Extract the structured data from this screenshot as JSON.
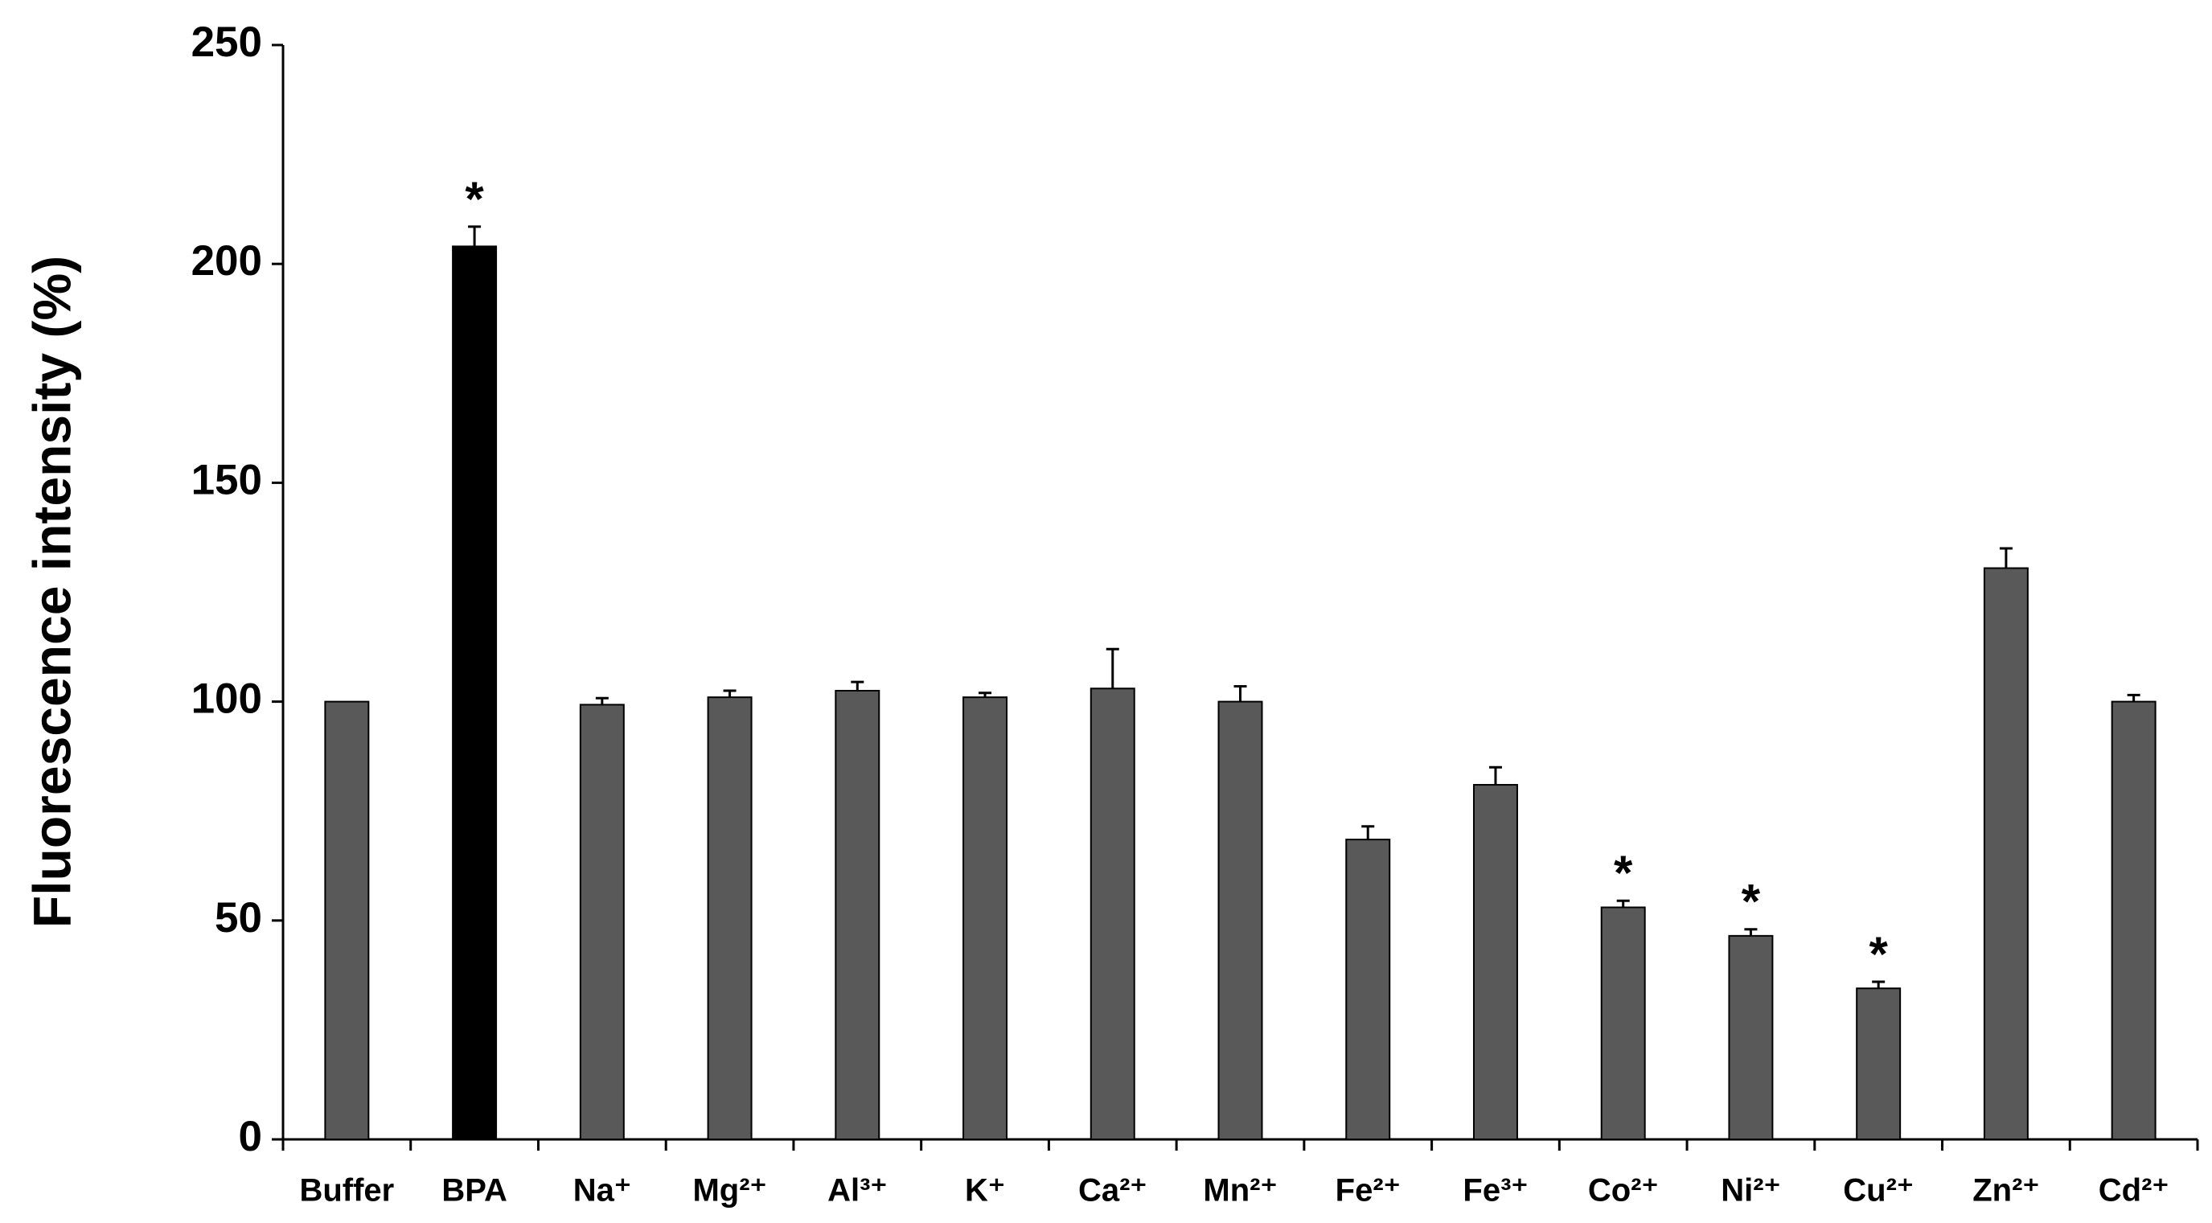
{
  "chart_data": {
    "type": "bar",
    "ylabel": "Fluorescence intensity (%)",
    "categories": [
      "Buffer",
      "BPA",
      "Na⁺",
      "Mg²⁺",
      "Al³⁺",
      "K⁺",
      "Ca²⁺",
      "Mn²⁺",
      "Fe²⁺",
      "Fe³⁺",
      "Co²⁺",
      "Ni²⁺",
      "Cu²⁺",
      "Zn²⁺",
      "Cd²⁺"
    ],
    "values": [
      100,
      204,
      99.3,
      101,
      102.5,
      101,
      103,
      100,
      68.5,
      81,
      53,
      46.5,
      34.5,
      130.5,
      100
    ],
    "errors": [
      0,
      4.5,
      1.5,
      1.5,
      2,
      1,
      9,
      3.5,
      3,
      4,
      1.5,
      1.5,
      1.5,
      4.5,
      1.5
    ],
    "colors": [
      "#595959",
      "#000000",
      "#595959",
      "#595959",
      "#595959",
      "#595959",
      "#595959",
      "#595959",
      "#595959",
      "#595959",
      "#595959",
      "#595959",
      "#595959",
      "#595959",
      "#595959"
    ],
    "annotations": [
      {
        "text": "*",
        "category": "BPA"
      },
      {
        "text": "*",
        "category": "Co²⁺"
      },
      {
        "text": "*",
        "category": "Ni²⁺"
      },
      {
        "text": "*",
        "category": "Cu²⁺"
      }
    ],
    "ylim": [
      0,
      250
    ],
    "yticks": [
      0,
      50,
      100,
      150,
      200,
      250
    ],
    "grid": false
  }
}
